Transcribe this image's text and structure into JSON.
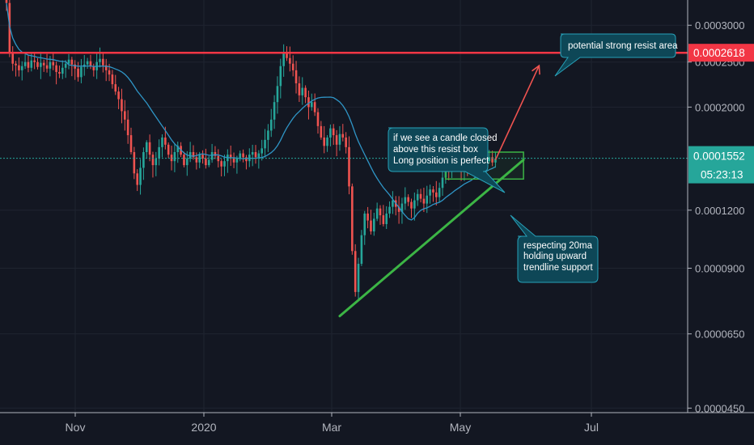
{
  "chart_data": {
    "type": "candlestick",
    "x_ticks": [
      "Nov",
      "2020",
      "Mar",
      "May",
      "Jul"
    ],
    "y_ticks": [
      "0.0003000",
      "0.0002500",
      "0.0002000",
      "0.0001200",
      "0.0000900",
      "0.0000650",
      "0.0000450"
    ],
    "y_tick_values": [
      0.0003,
      0.00025,
      0.0002,
      0.00012,
      9e-05,
      6.5e-05,
      4.5e-05
    ],
    "ylim": [
      4.4e-05,
      0.00034
    ],
    "y_scale": "log",
    "resistance_line": {
      "value": 0.0002618,
      "label": "0.0002618",
      "color": "#f23645"
    },
    "current_price": {
      "value": 0.0001552,
      "label": "0.0001552",
      "countdown": "05:23:13",
      "color": "#26a69a"
    },
    "candles_close": [
      0.000335,
      0.000262,
      0.000248,
      0.000246,
      0.00024,
      0.000245,
      0.00025,
      0.000243,
      0.000252,
      0.00025,
      0.000244,
      0.000249,
      0.000246,
      0.000242,
      0.00025,
      0.000246,
      0.000238,
      0.000236,
      0.000243,
      0.000248,
      0.000253,
      0.000247,
      0.000242,
      0.000232,
      0.000244,
      0.000247,
      0.000251,
      0.000245,
      0.00024,
      0.00025,
      0.000254,
      0.000246,
      0.00024,
      0.000235,
      0.000224,
      0.000216,
      0.000208,
      0.000196,
      0.000188,
      0.000174,
      0.00016,
      0.000144,
      0.000136,
      0.000148,
      0.00016,
      0.000168,
      0.000158,
      0.00015,
      0.000155,
      0.000164,
      0.000172,
      0.000166,
      0.000158,
      0.000153,
      0.00016,
      0.000165,
      0.000158,
      0.00015,
      0.000155,
      0.00016,
      0.000156,
      0.000152,
      0.000158,
      0.000155,
      0.00015,
      0.000154,
      0.00016,
      0.000157,
      0.000153,
      0.000149,
      0.000153,
      0.000158,
      0.000156,
      0.000152,
      0.000155,
      0.000159,
      0.000156,
      0.000153,
      0.000158,
      0.00016,
      0.000156,
      0.000159,
      0.000163,
      0.00017,
      0.000178,
      0.000188,
      0.000205,
      0.000222,
      0.000245,
      0.000262,
      0.000255,
      0.000248,
      0.00024,
      0.000225,
      0.000212,
      0.00022,
      0.00021,
      0.0002,
      0.000205,
      0.000195,
      0.000182,
      0.000172,
      0.000165,
      0.000172,
      0.00018,
      0.000174,
      0.000166,
      0.000175,
      0.000172,
      0.000164,
      0.000135,
      9.8e-05,
      8e-05,
      9.2e-05,
      0.000106,
      0.000118,
      0.000114,
      0.000108,
      0.000115,
      0.000121,
      0.000117,
      0.000112,
      0.000118,
      0.000122,
      0.000126,
      0.000122,
      0.000119,
      0.000124,
      0.000128,
      0.000125,
      0.000121,
      0.000126,
      0.00013,
      0.000127,
      0.000124,
      0.000129,
      0.000133,
      0.000131,
      0.000128,
      0.000134,
      0.000141,
      0.000148,
      0.000146,
      0.000152,
      0.000158,
      0.00015,
      0.000147,
      0.000155,
      0.00015,
      0.000146,
      0.000152,
      0.000155,
      0.00015,
      0.000148,
      0.000153,
      0.000156,
      0.000152,
      0.000155
    ],
    "ma20_color": "#2f95c6",
    "trendline": {
      "from": {
        "x_index": 107,
        "value": 7.1e-05
      },
      "to": {
        "x_index": 166,
        "value": 0.000154
      },
      "color": "#3cb545"
    },
    "resist_box": {
      "x_index_start": 141,
      "x_index_end": 166,
      "top": 0.00016,
      "bottom": 0.00014,
      "color": "#3cb545"
    },
    "projection_arrow": {
      "from": {
        "x_index": 157,
        "value": 0.000154
      },
      "to": {
        "x_index": 171,
        "value": 0.0002618
      },
      "color": "#ef5350"
    },
    "annotations": [
      {
        "lines": [
          "potential strong resist area"
        ]
      },
      {
        "lines": [
          "if we see a candle closed",
          "above this resist box",
          "Long position is perfect"
        ]
      },
      {
        "lines": [
          "respecting 20ma",
          "holding upward",
          "trendline support"
        ]
      }
    ]
  }
}
